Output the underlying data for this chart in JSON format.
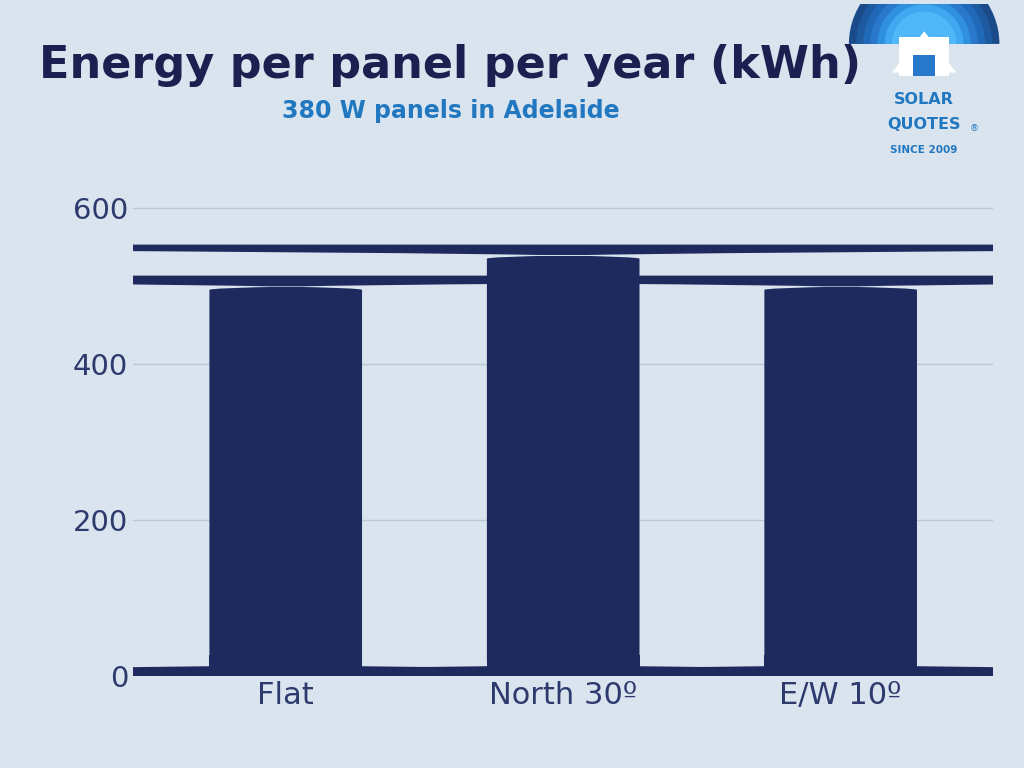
{
  "title": "Energy per panel per year (kWh)",
  "subtitle": "380 W panels in Adelaide",
  "categories": [
    "Flat",
    "North 30º",
    "E/W 10º"
  ],
  "values": [
    513,
    553,
    513
  ],
  "bar_color": "#1e2a5e",
  "background_color": "#d9e4ef",
  "title_color": "#1a2050",
  "subtitle_color": "#2278c0",
  "tick_color": "#2e3a6e",
  "grid_color": "#b8c8d8",
  "ylim": [
    0,
    650
  ],
  "yticks": [
    0,
    200,
    400,
    600
  ],
  "title_fontsize": 32,
  "subtitle_fontsize": 17,
  "tick_fontsize": 21,
  "xlabel_fontsize": 22,
  "bar_rounding": 18
}
